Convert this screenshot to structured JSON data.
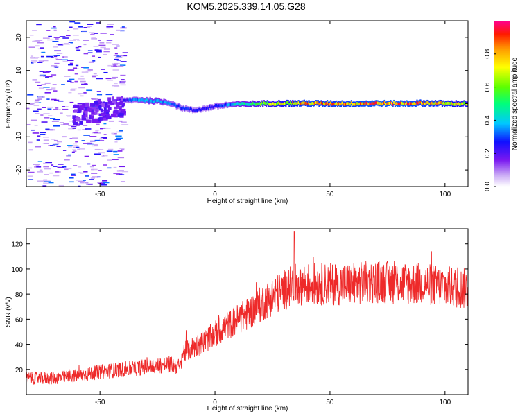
{
  "figure_title": "KOM5.2025.339.14.05.G28",
  "chart_data": [
    {
      "type": "heatmap",
      "title": "",
      "xlabel": "Height of straight line (km)",
      "ylabel": "Frequency (Hz)",
      "xlim": [
        -82,
        110
      ],
      "ylim": [
        -25,
        25
      ],
      "xticks": [
        -50,
        0,
        50,
        100
      ],
      "yticks": [
        -20,
        -10,
        0,
        10,
        20
      ],
      "ridge": {
        "description": "dominant spectral line frequency vs height",
        "x": [
          -40,
          -35,
          -30,
          -25,
          -20,
          -15,
          -10,
          -5,
          0,
          5,
          10,
          20,
          30,
          40,
          50,
          60,
          70,
          80,
          90,
          100,
          110
        ],
        "freq": [
          0.8,
          1.2,
          1.0,
          0.7,
          0.3,
          -1.2,
          -2.0,
          -1.5,
          -0.8,
          -0.4,
          -0.2,
          0.0,
          0.1,
          0.1,
          0.0,
          0.0,
          0.1,
          0.0,
          0.2,
          0.0,
          0.0
        ],
        "amplitude": [
          0.25,
          0.35,
          0.4,
          0.45,
          0.35,
          0.3,
          0.25,
          0.25,
          0.3,
          0.35,
          0.45,
          0.6,
          0.75,
          0.85,
          0.85,
          0.85,
          0.9,
          0.9,
          0.85,
          0.8,
          0.7
        ]
      },
      "noise_region_x": [
        -82,
        -40
      ],
      "colorbar": {
        "label": "Normalized spectral amplitude",
        "range": [
          0.0,
          1.0
        ],
        "ticks": [
          "0.0",
          "0.2",
          "0.4",
          "0.6",
          "0.8"
        ]
      }
    },
    {
      "type": "line",
      "title": "",
      "xlabel": "Height of straight line (km)",
      "ylabel": "SNR (v/v)",
      "xlim": [
        -82,
        110
      ],
      "ylim": [
        0,
        132
      ],
      "xticks": [
        -50,
        0,
        50,
        100
      ],
      "yticks": [
        20,
        40,
        60,
        80,
        100,
        120
      ],
      "color": "#ee2a2a",
      "trend": {
        "x": [
          -82,
          -70,
          -60,
          -50,
          -40,
          -30,
          -20,
          -15,
          -14,
          -10,
          -5,
          0,
          5,
          10,
          15,
          20,
          25,
          30,
          35,
          40,
          50,
          60,
          70,
          80,
          90,
          100,
          110
        ],
        "y": [
          13,
          13,
          15,
          18,
          20,
          22,
          24,
          22,
          33,
          37,
          42,
          48,
          55,
          60,
          65,
          72,
          78,
          83,
          88,
          88,
          88,
          88,
          90,
          89,
          88,
          86,
          84
        ]
      },
      "spike": {
        "x": 34.5,
        "y": 130
      }
    }
  ]
}
